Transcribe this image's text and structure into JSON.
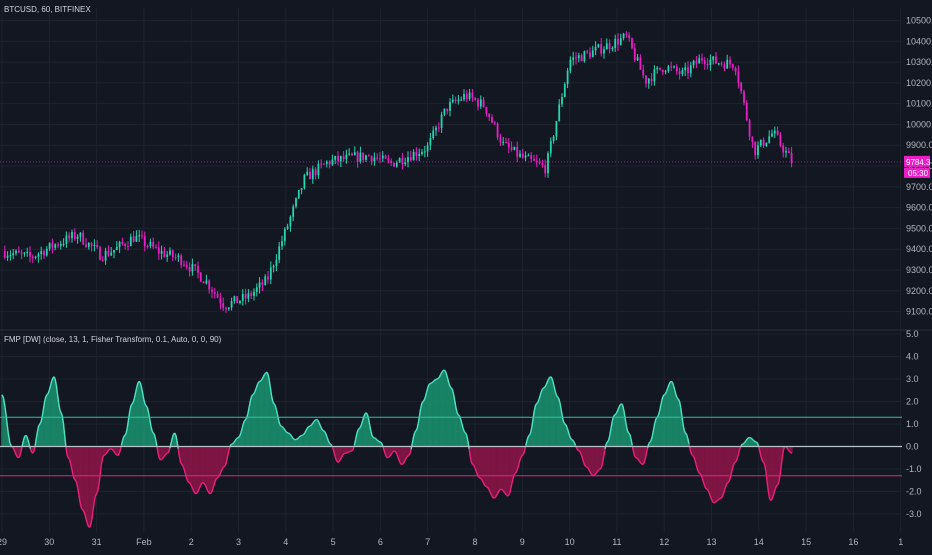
{
  "colors": {
    "background": "#131722",
    "grid": "#1e222d",
    "axis_text": "#b2b5be",
    "separator": "#2a2e39",
    "candle_up": "#26d6b0",
    "candle_down": "#e91ec7",
    "osc_pos_fill": "#1a8f6c",
    "osc_pos_line": "#4fe3c6",
    "osc_neg_fill": "#8a1547",
    "osc_neg_line": "#e9207c",
    "upper_band": "#26c6a4",
    "lower_band": "#e9207c",
    "zero_line": "#b7c3c8",
    "price_badge_main": "#e91ec7",
    "price_badge_sub": "#e91ec7"
  },
  "header": {
    "price_title": "BTCUSD, 60, BITFINEX",
    "indicator_title": "FMP [DW] (close, 13, 1, Fisher Transform, 0.1, Auto, 0, 0, 90)"
  },
  "price_axis": {
    "ticks": [
      "10500.00",
      "10400.00",
      "10300.00",
      "10200.00",
      "10100.00",
      "10000.00",
      "9900.00",
      "9800.00",
      "9700.00",
      "9600.00",
      "9500.00",
      "9400.00",
      "9300.00",
      "9200.00",
      "9100.00"
    ],
    "current_price_label": "9784.3",
    "countdown_label": "05:30"
  },
  "osc_axis": {
    "ticks": [
      "5.0",
      "4.0",
      "3.0",
      "2.0",
      "1.0",
      "0.0",
      "-1.0",
      "-2.0",
      "-3.0"
    ]
  },
  "time_axis": {
    "ticks": [
      "29",
      "30",
      "31",
      "Feb",
      "2",
      "3",
      "4",
      "5",
      "6",
      "7",
      "8",
      "9",
      "10",
      "11",
      "12",
      "13",
      "14",
      "15",
      "16",
      "1"
    ]
  },
  "chart_data": [
    {
      "type": "candlestick",
      "title": "BTCUSD, 60, BITFINEX",
      "x_range": [
        "29",
        "1"
      ],
      "ylim": [
        9050,
        10560
      ],
      "grid": true,
      "series": [
        {
          "name": "close",
          "x_day": [
            0.0,
            0.6,
            1.1,
            1.6,
            2.1,
            2.4,
            2.8,
            3.3,
            3.8,
            4.3,
            4.7,
            5.2,
            5.6,
            6.0,
            6.4,
            6.9,
            7.4,
            7.8,
            8.2,
            8.6,
            9.0,
            9.4,
            9.8,
            10.2,
            10.6,
            11.0,
            11.5,
            12.0,
            12.4,
            12.8,
            13.2,
            13.6,
            14.0,
            14.4,
            14.8,
            15.1,
            15.5,
            15.9,
            16.3,
            16.7
          ],
          "values": [
            9390,
            9360,
            9420,
            9470,
            9370,
            9400,
            9460,
            9390,
            9350,
            9250,
            9130,
            9170,
            9250,
            9490,
            9740,
            9820,
            9840,
            9850,
            9810,
            9850,
            9890,
            10080,
            10140,
            10090,
            9900,
            9840,
            9790,
            10310,
            10340,
            10380,
            10420,
            10210,
            10280,
            10240,
            10320,
            10300,
            10290,
            9870,
            9960,
            9820
          ]
        }
      ]
    },
    {
      "type": "area",
      "title": "FMP [DW] (close, 13, 1, Fisher Transform, 0.1, Auto, 0, 0, 90)",
      "ylim": [
        -3.8,
        5.0
      ],
      "upper_band": 1.3,
      "lower_band": -1.3,
      "zero": 0.0,
      "x_day": [
        0.0,
        0.2,
        0.35,
        0.5,
        0.65,
        0.8,
        0.95,
        1.1,
        1.25,
        1.4,
        1.55,
        1.7,
        1.85,
        2.0,
        2.15,
        2.3,
        2.45,
        2.6,
        2.75,
        2.9,
        3.05,
        3.2,
        3.35,
        3.5,
        3.65,
        3.8,
        3.95,
        4.1,
        4.25,
        4.4,
        4.55,
        4.7,
        4.85,
        5.0,
        5.15,
        5.3,
        5.45,
        5.6,
        5.75,
        5.9,
        6.05,
        6.2,
        6.35,
        6.5,
        6.65,
        6.8,
        6.95,
        7.1,
        7.25,
        7.4,
        7.55,
        7.7,
        7.85,
        8.0,
        8.15,
        8.3,
        8.45,
        8.6,
        8.75,
        8.9,
        9.05,
        9.2,
        9.35,
        9.5,
        9.65,
        9.8,
        9.95,
        10.1,
        10.25,
        10.4,
        10.55,
        10.7,
        10.85,
        11.0,
        11.15,
        11.3,
        11.45,
        11.6,
        11.75,
        11.9,
        12.05,
        12.2,
        12.35,
        12.5,
        12.65,
        12.8,
        12.95,
        13.1,
        13.25,
        13.4,
        13.55,
        13.7,
        13.85,
        14.0,
        14.15,
        14.3,
        14.45,
        14.6,
        14.75,
        14.9,
        15.05,
        15.2,
        15.35,
        15.5,
        15.65,
        15.8,
        15.95,
        16.1,
        16.25,
        16.4,
        16.55,
        16.7
      ],
      "values": [
        2.3,
        0.0,
        -0.5,
        0.5,
        -0.3,
        1.0,
        2.3,
        3.1,
        1.5,
        -0.5,
        -1.5,
        -2.8,
        -3.6,
        -2.1,
        -0.4,
        -0.1,
        -0.4,
        0.5,
        1.9,
        2.9,
        1.8,
        0.6,
        -0.6,
        -0.3,
        0.6,
        -0.8,
        -1.6,
        -2.1,
        -1.6,
        -2.1,
        -1.4,
        -0.9,
        0.1,
        0.4,
        1.2,
        2.3,
        2.9,
        3.3,
        1.9,
        0.9,
        0.6,
        0.3,
        0.5,
        0.9,
        1.2,
        0.7,
        0.1,
        -0.7,
        -0.3,
        -0.2,
        0.8,
        1.5,
        0.4,
        0.2,
        -0.5,
        -0.2,
        -0.8,
        -0.4,
        0.7,
        2.0,
        2.8,
        3.0,
        3.4,
        2.6,
        1.4,
        0.6,
        -0.8,
        -1.4,
        -1.8,
        -2.3,
        -1.9,
        -2.2,
        -1.2,
        -0.4,
        0.5,
        1.9,
        2.6,
        3.1,
        2.2,
        1.0,
        0.3,
        -0.2,
        -0.9,
        -1.3,
        -1.0,
        0.2,
        1.4,
        1.9,
        0.6,
        -0.5,
        -0.8,
        0.2,
        1.3,
        2.3,
        2.9,
        2.1,
        0.6,
        -0.4,
        -1.2,
        -1.9,
        -2.5,
        -2.3,
        -1.6,
        -0.7,
        0.1,
        0.4,
        0.2,
        -0.7,
        -2.4,
        -1.7,
        0.0,
        -0.3
      ]
    }
  ]
}
